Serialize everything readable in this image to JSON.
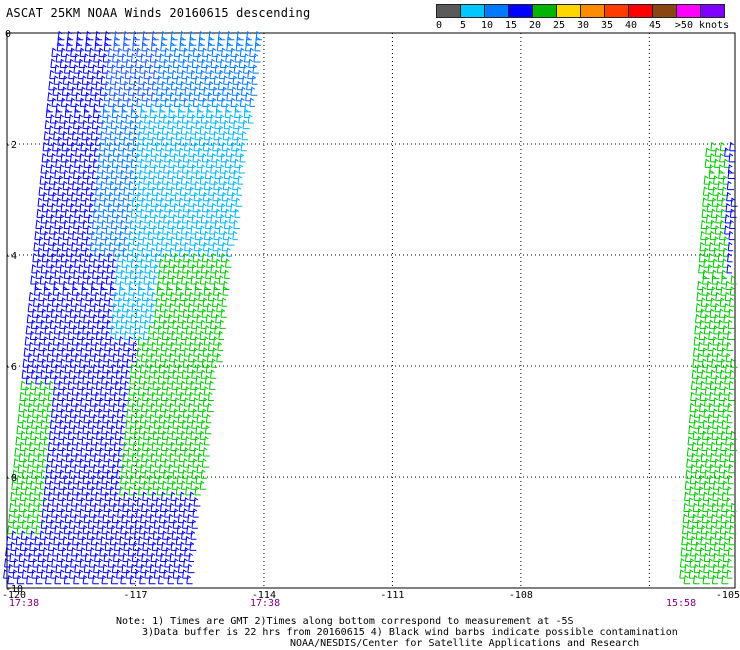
{
  "title": "ASCAT 25KM NOAA Winds 20160615 descending",
  "colorbar": {
    "labels": [
      "0",
      "5",
      "10",
      "15",
      "20",
      "25",
      "30",
      "35",
      "40",
      "45",
      ">50 knots"
    ],
    "colors": [
      "#5a5a5a",
      "#00c8ff",
      "#0078ff",
      "#0000ff",
      "#00b400",
      "#ffd700",
      "#ff8c00",
      "#ff3c00",
      "#ff0000",
      "#8b4513",
      "#ff00ff",
      "#8000ff"
    ]
  },
  "chart_data": {
    "type": "scatter",
    "xlim": [
      -120,
      -103
    ],
    "ylim": [
      -10,
      0
    ],
    "x_ticks": [
      "-120",
      "-117",
      "-114",
      "-111",
      "-108",
      "-105"
    ],
    "y_ticks": [
      "0",
      "-2",
      "-4",
      "-6",
      "-8",
      "-10"
    ],
    "grid": true,
    "swaths": [
      {
        "name": "west swath",
        "time": "17:38",
        "lon_range_top": [
          -118.8,
          -114.1
        ],
        "lon_range_bottom": [
          -120,
          -115.8
        ],
        "lat_range": [
          -10,
          0
        ],
        "speed_knots": [
          5,
          20
        ]
      },
      {
        "name": "east swath",
        "time": "15:58",
        "lon_range_top": [
          -103.4,
          -103
        ],
        "lon_range_bottom": [
          -104.2,
          -103
        ],
        "lat_range": [
          -10,
          -2
        ],
        "speed_knots": [
          10,
          20
        ]
      }
    ],
    "bottom_times": [
      {
        "label": "17:38",
        "lon": -120
      },
      {
        "label": "17:38",
        "lon": -115.4
      },
      {
        "label": "15:58",
        "lon": -105.8
      }
    ]
  },
  "notes": [
    "Note: 1) Times are GMT 2)Times along bottom correspond to measurement at -5S",
    "3)Data buffer is 22 hrs from 20160615 4) Black wind barbs indicate possible contamination",
    "NOAA/NESDIS/Center for Satellite Applications and Research"
  ]
}
